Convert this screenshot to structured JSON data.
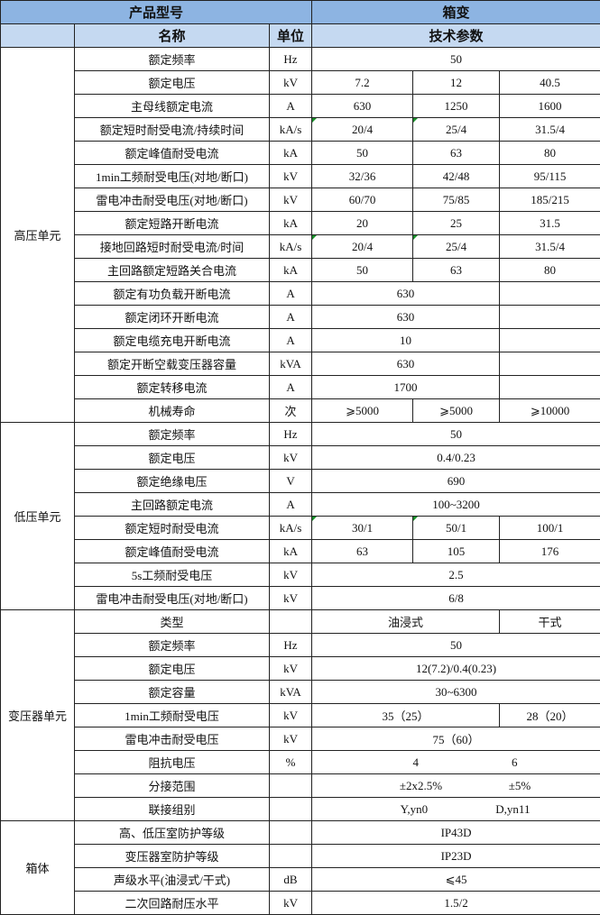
{
  "header": {
    "product_model_label": "产品型号",
    "product_model_value": "箱变",
    "name_label": "名称",
    "unit_label": "单位",
    "params_label": "技术参数"
  },
  "colors": {
    "header_dark": "#8db4e2",
    "header_light": "#c5d9f1",
    "flag": "#1a8f2a"
  },
  "groups": [
    {
      "label": "高压单元",
      "rows": [
        {
          "name": "额定频率",
          "unit": "Hz",
          "layout": "all",
          "values": [
            "50"
          ]
        },
        {
          "name": "额定电压",
          "unit": "kV",
          "layout": "three",
          "values": [
            "7.2",
            "12",
            "40.5"
          ]
        },
        {
          "name": "主母线额定电流",
          "unit": "A",
          "layout": "three",
          "values": [
            "630",
            "1250",
            "1600"
          ]
        },
        {
          "name": "额定短时耐受电流/持续时间",
          "unit": "kA/s",
          "layout": "three",
          "values": [
            "20/4",
            "25/4",
            "31.5/4"
          ],
          "flag": true
        },
        {
          "name": "额定峰值耐受电流",
          "unit": "kA",
          "layout": "three",
          "values": [
            "50",
            "63",
            "80"
          ]
        },
        {
          "name": "1min工频耐受电压(对地/断口)",
          "unit": "kV",
          "layout": "three",
          "values": [
            "32/36",
            "42/48",
            "95/115"
          ]
        },
        {
          "name": "雷电冲击耐受电压(对地/断口)",
          "unit": "kV",
          "layout": "three",
          "values": [
            "60/70",
            "75/85",
            "185/215"
          ]
        },
        {
          "name": "额定短路开断电流",
          "unit": "kA",
          "layout": "three",
          "values": [
            "20",
            "25",
            "31.5"
          ]
        },
        {
          "name": "接地回路短时耐受电流/时间",
          "unit": "kA/s",
          "layout": "three",
          "values": [
            "20/4",
            "25/4",
            "31.5/4"
          ],
          "flag": true
        },
        {
          "name": "主回路额定短路关合电流",
          "unit": "kA",
          "layout": "three",
          "values": [
            "50",
            "63",
            "80"
          ]
        },
        {
          "name": "额定有功负载开断电流",
          "unit": "A",
          "layout": "two_one",
          "values": [
            "630",
            ""
          ]
        },
        {
          "name": "额定闭环开断电流",
          "unit": "A",
          "layout": "two_one",
          "values": [
            "630",
            ""
          ]
        },
        {
          "name": "额定电缆充电开断电流",
          "unit": "A",
          "layout": "two_one",
          "values": [
            "10",
            ""
          ]
        },
        {
          "name": "额定开断空载变压器容量",
          "unit": "kVA",
          "layout": "two_one",
          "values": [
            "630",
            ""
          ]
        },
        {
          "name": "额定转移电流",
          "unit": "A",
          "layout": "two_one",
          "values": [
            "1700",
            ""
          ]
        },
        {
          "name": "机械寿命",
          "unit": "次",
          "layout": "three",
          "values": [
            "⩾5000",
            "⩾5000",
            "⩾10000"
          ]
        }
      ]
    },
    {
      "label": "低压单元",
      "rows": [
        {
          "name": "额定频率",
          "unit": "Hz",
          "layout": "all",
          "values": [
            "50"
          ]
        },
        {
          "name": "额定电压",
          "unit": "kV",
          "layout": "all",
          "values": [
            "0.4/0.23"
          ]
        },
        {
          "name": "额定绝缘电压",
          "unit": "V",
          "layout": "all",
          "values": [
            "690"
          ]
        },
        {
          "name": "主回路额定电流",
          "unit": "A",
          "layout": "all",
          "values": [
            "100~3200"
          ]
        },
        {
          "name": "额定短时耐受电流",
          "unit": "kA/s",
          "layout": "three",
          "values": [
            "30/1",
            "50/1",
            "100/1"
          ],
          "flag": true
        },
        {
          "name": "额定峰值耐受电流",
          "unit": "kA",
          "layout": "three",
          "values": [
            "63",
            "105",
            "176"
          ]
        },
        {
          "name": "5s工频耐受电压",
          "unit": "kV",
          "layout": "all",
          "values": [
            "2.5"
          ]
        },
        {
          "name": "雷电冲击耐受电压(对地/断口)",
          "unit": "kV",
          "layout": "all",
          "values": [
            "6/8"
          ]
        }
      ]
    },
    {
      "label": "变压器单元",
      "rows": [
        {
          "name": "类型",
          "unit": "",
          "layout": "two_one",
          "values": [
            "油浸式",
            "干式"
          ]
        },
        {
          "name": "额定频率",
          "unit": "Hz",
          "layout": "all",
          "values": [
            "50"
          ]
        },
        {
          "name": "额定电压",
          "unit": "kV",
          "layout": "all",
          "values": [
            "12(7.2)/0.4(0.23)"
          ]
        },
        {
          "name": "额定容量",
          "unit": "kVA",
          "layout": "all",
          "values": [
            "30~6300"
          ]
        },
        {
          "name": "1min工频耐受电压",
          "unit": "kV",
          "layout": "two_one",
          "values": [
            "35（25）",
            "28（20）"
          ]
        },
        {
          "name": "雷电冲击耐受电压",
          "unit": "kV",
          "layout": "all",
          "values": [
            "75（60）"
          ]
        },
        {
          "name": "阻抗电压",
          "unit": "%",
          "layout": "pair",
          "values": [
            "4",
            "6"
          ]
        },
        {
          "name": "分接范围",
          "unit": "",
          "layout": "pair",
          "values": [
            "±2x2.5%",
            "±5%"
          ]
        },
        {
          "name": "联接组别",
          "unit": "",
          "layout": "pair",
          "values": [
            "Y,yn0",
            "D,yn11"
          ]
        }
      ]
    },
    {
      "label": "箱体",
      "rows": [
        {
          "name": "高、低压室防护等级",
          "unit": "",
          "layout": "all",
          "values": [
            "IP43D"
          ]
        },
        {
          "name": "变压器室防护等级",
          "unit": "",
          "layout": "all",
          "values": [
            "IP23D"
          ]
        },
        {
          "name": "声级水平(油浸式/干式)",
          "unit": "dB",
          "layout": "all",
          "values": [
            "⩽45"
          ]
        },
        {
          "name": "二次回路耐压水平",
          "unit": "kV",
          "layout": "all",
          "values": [
            "1.5/2"
          ]
        }
      ]
    }
  ]
}
